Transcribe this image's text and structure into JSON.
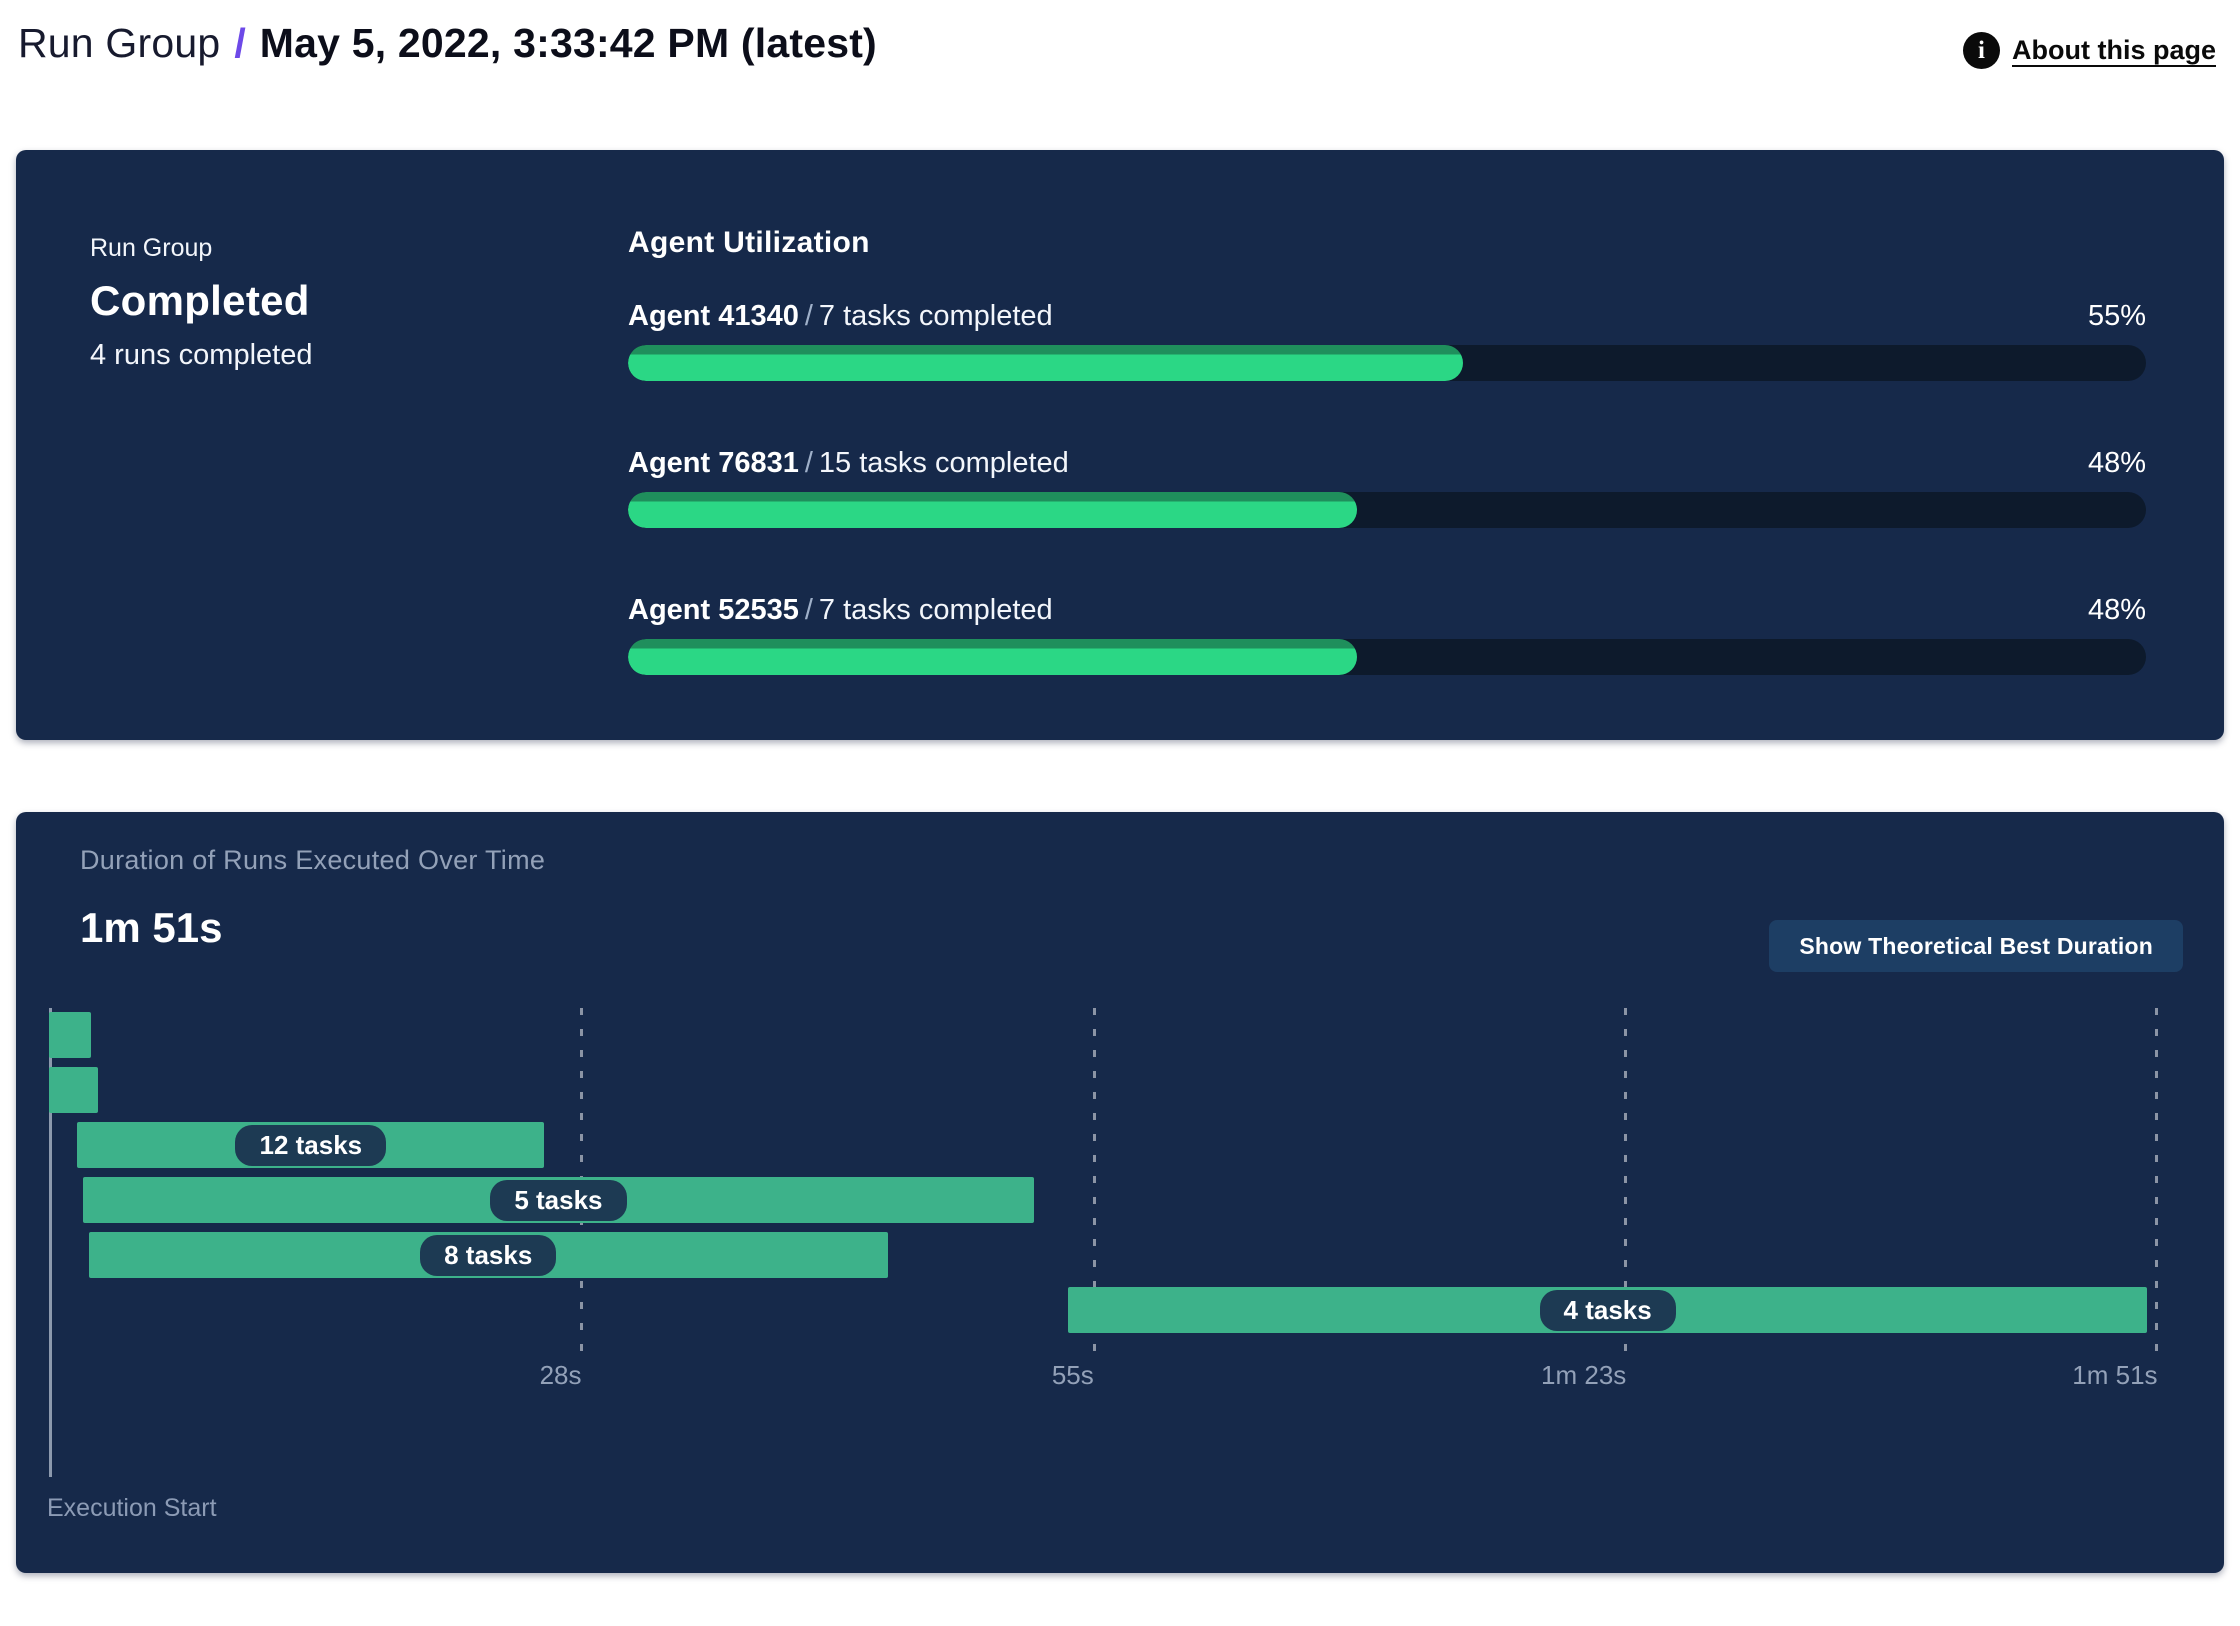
{
  "page": {
    "breadcrumb_root": "Run Group",
    "breadcrumb_separator": "/",
    "title": "May 5, 2022, 3:33:42 PM (latest)",
    "info_glyph": "i",
    "about_link": "About this page"
  },
  "colors": {
    "card_bg": "#16294a",
    "accent_purple": "#6d49e8",
    "progress_fill": "#2bd785",
    "progress_fill_top": "#1f8f5c",
    "progress_track": "#0d1a2c",
    "gantt_bar_green": "#3db28a",
    "pill_bg": "#1d3a53",
    "button_bg": "#1d3e64",
    "muted_text": "#93a1b8"
  },
  "status_card": {
    "label": "Run Group",
    "status": "Completed",
    "runs_summary": "4 runs completed",
    "utilization_title": "Agent Utilization",
    "agents": [
      {
        "name": "Agent 41340",
        "separator": "/",
        "tasks": "7 tasks completed",
        "percent_label": "55%",
        "percent_value": 55
      },
      {
        "name": "Agent 76831",
        "separator": "/",
        "tasks": "15 tasks completed",
        "percent_label": "48%",
        "percent_value": 48
      },
      {
        "name": "Agent 52535",
        "separator": "/",
        "tasks": "7 tasks completed",
        "percent_label": "48%",
        "percent_value": 48
      }
    ]
  },
  "duration_card": {
    "title": "Duration of Runs Executed Over Time",
    "total_duration": "1m 51s",
    "button_label": "Show Theoretical Best Duration",
    "axis_label": "Execution Start"
  },
  "chart_data": {
    "type": "gantt",
    "title": "Duration of Runs Executed Over Time",
    "total_duration_label": "1m 51s",
    "total_duration_seconds": 111,
    "x_axis": {
      "label": "Execution Start",
      "range_seconds": [
        0,
        111
      ],
      "ticks": [
        {
          "t": 28,
          "label": "28s"
        },
        {
          "t": 55,
          "label": "55s"
        },
        {
          "t": 83,
          "label": "1m 23s"
        },
        {
          "t": 111,
          "label": "1m 51s"
        }
      ],
      "gridlines": "dashed-vertical"
    },
    "bars": [
      {
        "start": 0,
        "end": 2.2,
        "label": ""
      },
      {
        "start": 0,
        "end": 2.6,
        "label": ""
      },
      {
        "start": 1.5,
        "end": 26.1,
        "label": "12 tasks"
      },
      {
        "start": 1.8,
        "end": 51.9,
        "label": "5 tasks"
      },
      {
        "start": 2.1,
        "end": 44.2,
        "label": "8 tasks"
      },
      {
        "start": 53.7,
        "end": 110.6,
        "label": "4 tasks"
      }
    ]
  }
}
